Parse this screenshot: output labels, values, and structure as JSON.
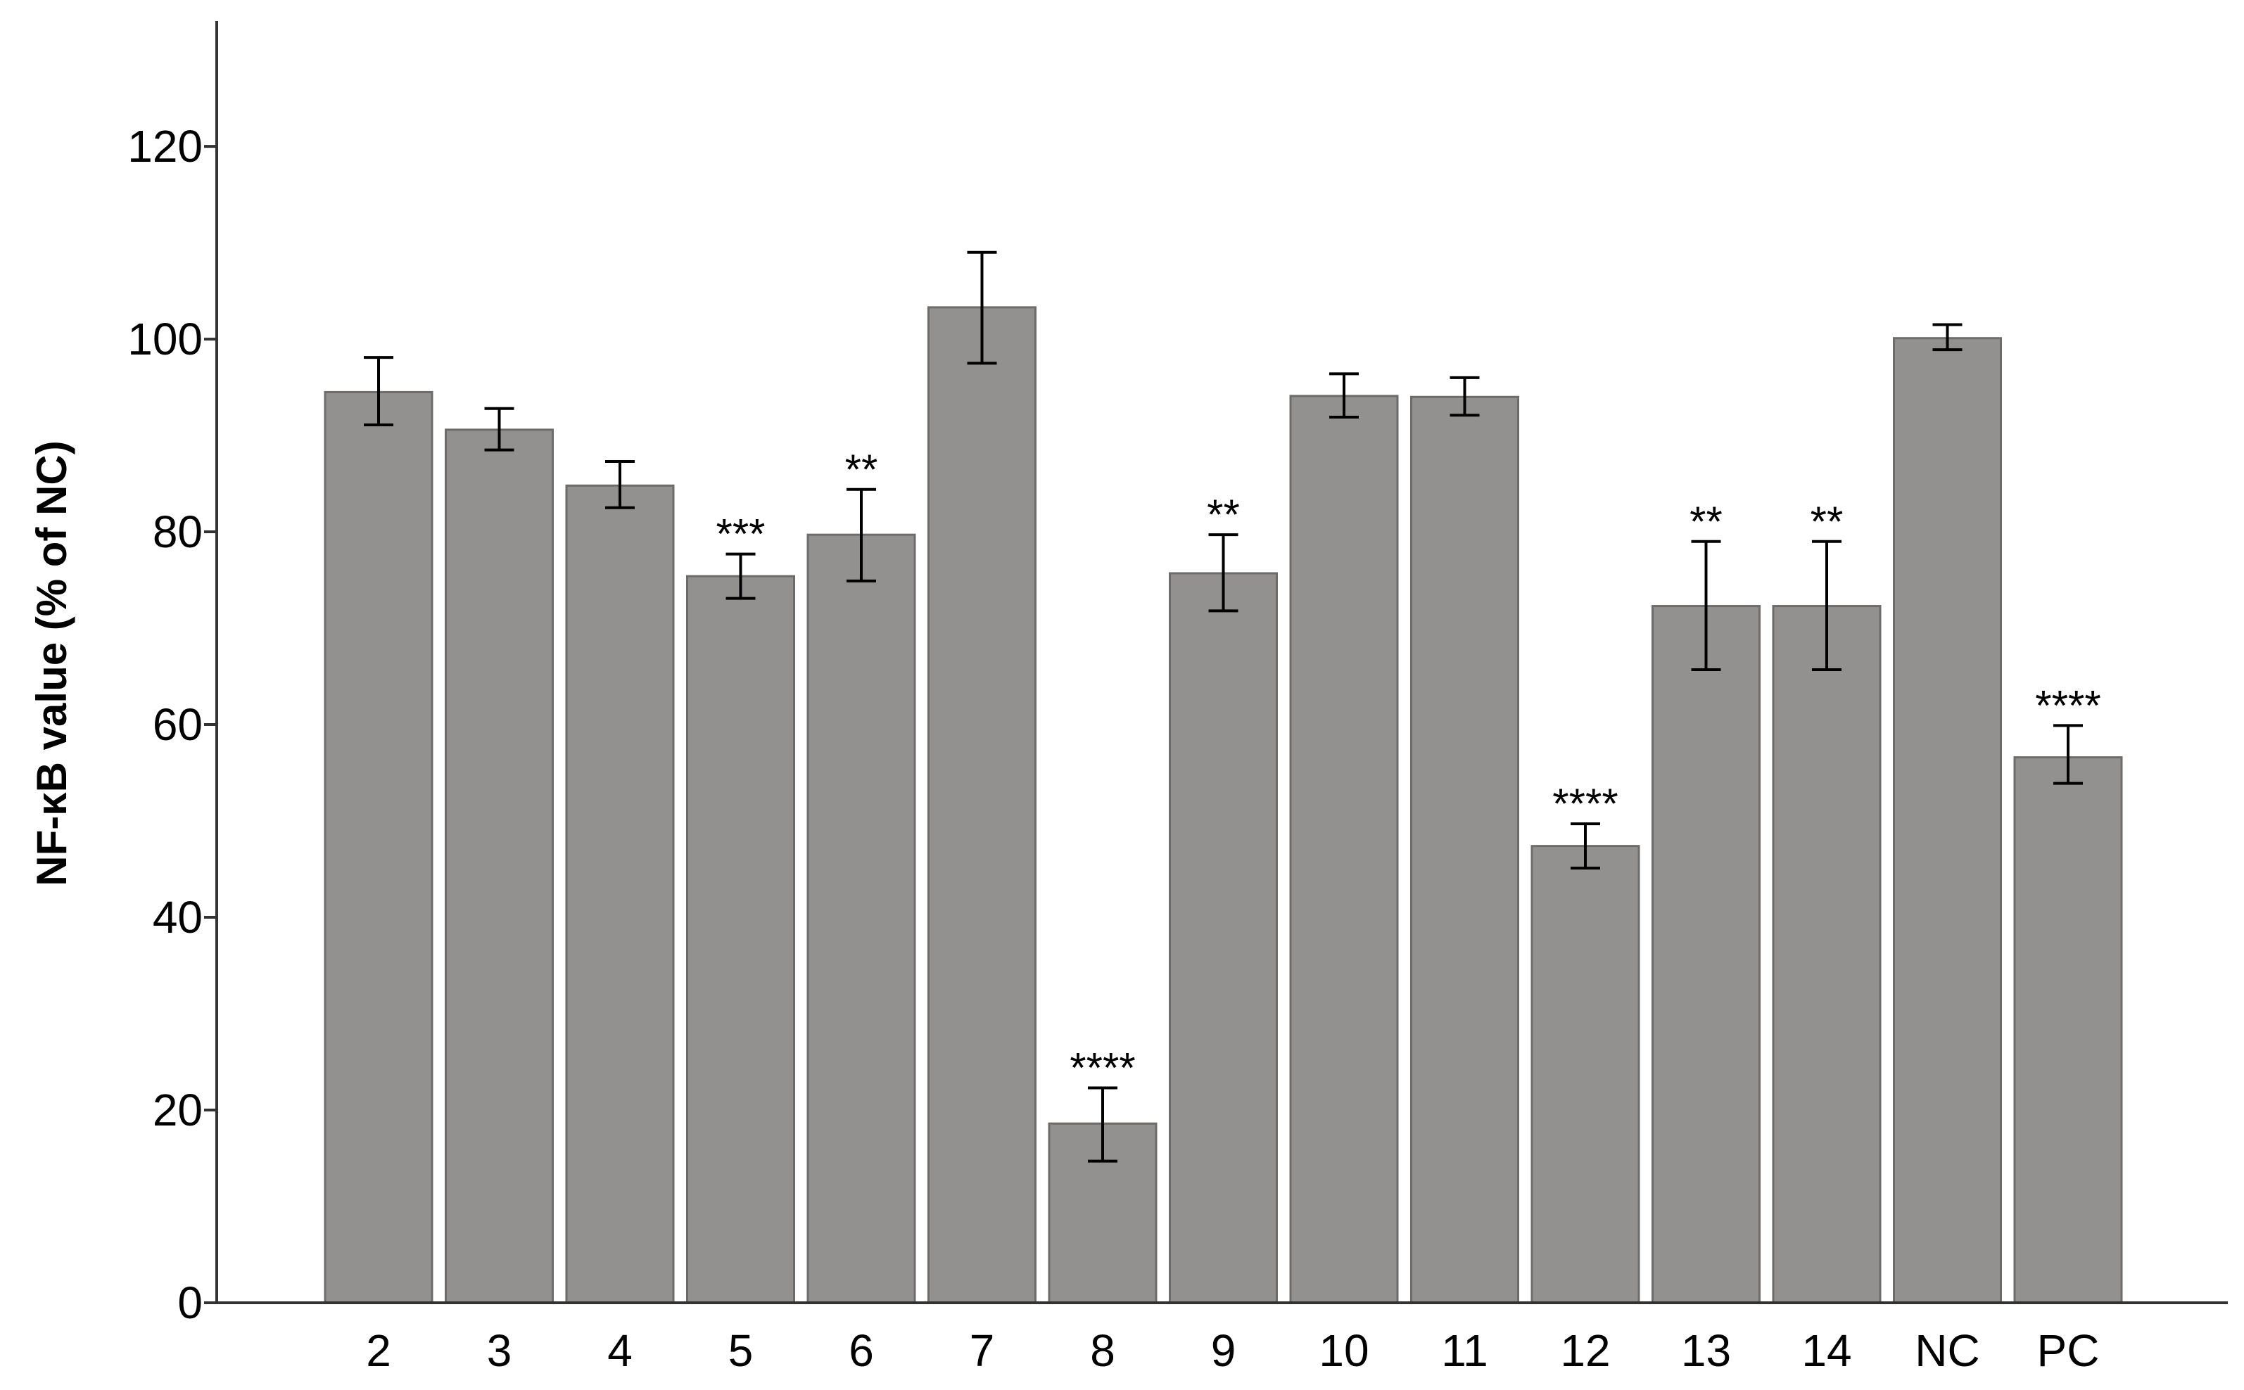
{
  "chart_data": {
    "type": "bar",
    "title": "",
    "xlabel": "",
    "ylabel": "NF-κB value (% of NC)",
    "ylim": [
      0,
      133
    ],
    "yticks": [
      0,
      20,
      40,
      60,
      80,
      100,
      120
    ],
    "categories": [
      "2",
      "3",
      "4",
      "5",
      "6",
      "7",
      "8",
      "9",
      "10",
      "11",
      "12",
      "13",
      "14",
      "NC",
      "PC"
    ],
    "values": [
      94.5,
      90.6,
      84.8,
      75.4,
      79.7,
      103.3,
      18.6,
      75.7,
      94.1,
      94.0,
      47.4,
      72.3,
      72.3,
      100.1,
      56.6
    ],
    "error_low": [
      91.1,
      88.5,
      82.5,
      73.1,
      74.9,
      97.5,
      14.7,
      71.8,
      91.9,
      92.1,
      45.1,
      65.7,
      65.7,
      98.9,
      53.9
    ],
    "error_high": [
      98.1,
      92.8,
      87.3,
      77.7,
      84.4,
      109.0,
      22.3,
      79.7,
      96.4,
      96.0,
      49.7,
      79.0,
      79.0,
      101.5,
      59.9
    ],
    "significance": [
      "",
      "",
      "",
      "***",
      "**",
      "",
      "****",
      "**",
      "",
      "",
      "****",
      "**",
      "**",
      "",
      "****"
    ],
    "grid": false,
    "legend": "none",
    "colors": {
      "bar_fill": "#939090",
      "bar_stroke": "#6e6b6b",
      "axis": "#333333",
      "error_bar": "#000000"
    }
  }
}
